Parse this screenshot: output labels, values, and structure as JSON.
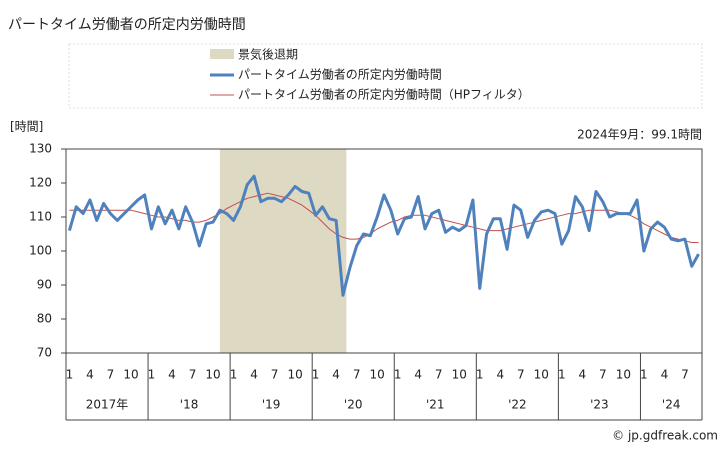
{
  "chart_data": {
    "type": "line",
    "title": "パートタイム労働者の所定内労働時間",
    "y_label": "[時間]",
    "annotation": "2024年9月：99.1時間",
    "source": "© jp.gdfreak.com",
    "recession": {
      "name": "景気後退期",
      "color": "#ddd9c3",
      "from_index": 22,
      "to_index": 40
    },
    "categories": [
      "1",
      null,
      null,
      "4",
      null,
      null,
      "7",
      null,
      null,
      "10",
      null,
      null,
      "1",
      null,
      null,
      "4",
      null,
      null,
      "7",
      null,
      null,
      "10",
      null,
      null,
      "1",
      null,
      null,
      "4",
      null,
      null,
      "7",
      null,
      null,
      "10",
      null,
      null,
      "1",
      null,
      null,
      "4",
      null,
      null,
      "7",
      null,
      null,
      "10",
      null,
      null,
      "1",
      null,
      null,
      "4",
      null,
      null,
      "7",
      null,
      null,
      "10",
      null,
      null,
      "1",
      null,
      null,
      "4",
      null,
      null,
      "7",
      null,
      null,
      "10",
      null,
      null,
      "1",
      null,
      null,
      "4",
      null,
      null,
      "7",
      null,
      null,
      "10",
      null,
      null,
      "1",
      null,
      null,
      "4",
      null,
      null,
      "7",
      null,
      null
    ],
    "year_labels": [
      "2017年",
      "'18",
      "'19",
      "'20",
      "'21",
      "'22",
      "'23",
      "'24"
    ],
    "year_lengths": [
      12,
      12,
      12,
      12,
      12,
      12,
      12,
      9
    ],
    "series": [
      {
        "name": "パートタイム労働者の所定内労働時間",
        "color": "#4f81bd",
        "width": 3,
        "values": [
          106,
          113,
          111,
          115,
          109,
          114,
          111,
          109,
          111,
          113,
          115,
          116.5,
          106.5,
          113,
          108,
          112,
          106.5,
          113,
          108.5,
          101.5,
          108,
          108.5,
          112,
          111,
          109,
          113,
          119.5,
          122,
          114.5,
          115.5,
          115.5,
          114.5,
          116.5,
          119,
          117.5,
          117,
          110.5,
          113,
          109.5,
          109,
          87,
          95,
          101.5,
          105,
          104.5,
          110,
          116.5,
          112,
          105,
          109.5,
          110,
          116,
          106.5,
          111,
          112,
          105.5,
          107,
          106,
          107.5,
          115,
          89,
          105,
          109.5,
          109.5,
          100.5,
          113.5,
          112,
          104,
          109,
          111.5,
          112,
          111,
          102,
          106,
          116,
          113,
          106,
          117.5,
          114.5,
          110,
          111,
          111,
          111,
          115,
          100,
          106.5,
          108.5,
          107,
          103.5,
          103,
          103.5,
          95.5,
          99.1
        ]
      },
      {
        "name": "パートタイム労働者の所定内労働時間（HPフィルタ）",
        "color": "#c0504d",
        "width": 1,
        "values": [
          112,
          112,
          112,
          112,
          112,
          112,
          112,
          112,
          112,
          112,
          111.5,
          111,
          110.5,
          110,
          110,
          109.5,
          109,
          109,
          108.5,
          108.5,
          109,
          110,
          111,
          112.5,
          113.5,
          114.5,
          115.5,
          116,
          116.5,
          117,
          116.5,
          116,
          115.5,
          114.5,
          113.5,
          112,
          110.5,
          108.5,
          106.5,
          105,
          104,
          103.5,
          103.5,
          104,
          105,
          106.5,
          107.5,
          108.5,
          109,
          110,
          110.5,
          110.5,
          110.5,
          110,
          109.5,
          109,
          108.5,
          108,
          107.5,
          107,
          106.5,
          106,
          106,
          106,
          106.5,
          107,
          107.5,
          108,
          108.5,
          109,
          109.5,
          110,
          110.5,
          111,
          111,
          111.5,
          112,
          112,
          112,
          112,
          111.5,
          111,
          110.5,
          109.5,
          108,
          107,
          106,
          105,
          104,
          103.5,
          103,
          102.5,
          102.5
        ]
      }
    ],
    "ylim": [
      70,
      130
    ],
    "yticks": [
      70,
      80,
      90,
      100,
      110,
      120,
      130
    ]
  }
}
